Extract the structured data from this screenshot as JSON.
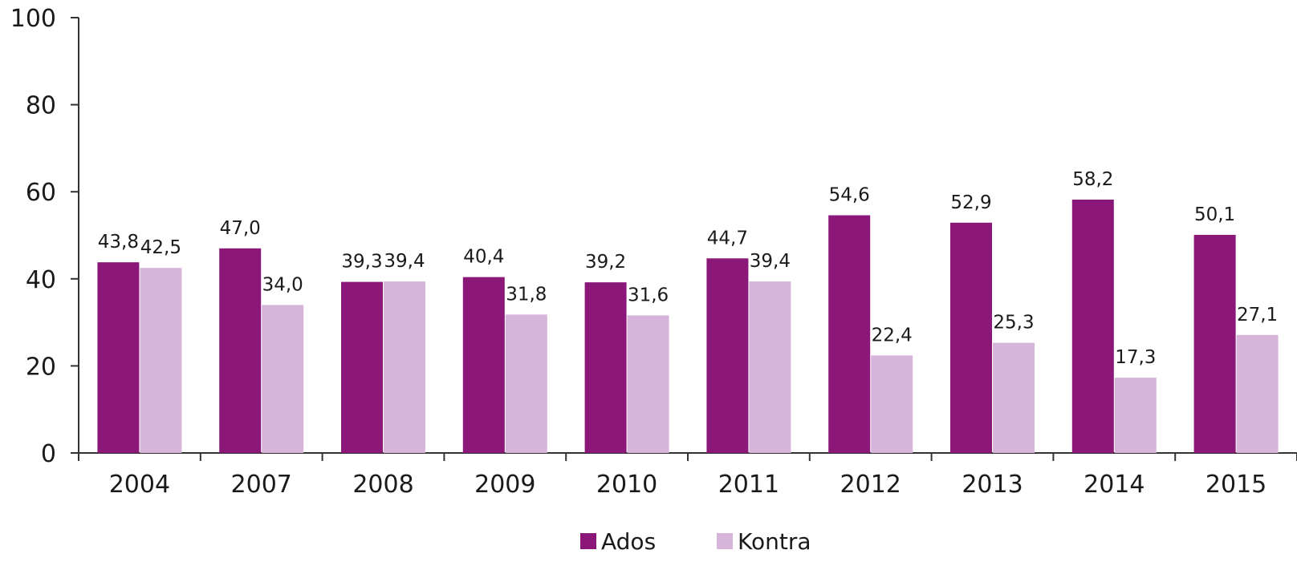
{
  "chart_data": {
    "type": "bar",
    "categories": [
      "2004",
      "2007",
      "2008",
      "2009",
      "2010",
      "2011",
      "2012",
      "2013",
      "2014",
      "2015"
    ],
    "series": [
      {
        "name": "Ados",
        "color": "#8B1878",
        "values": [
          43.8,
          47.0,
          39.3,
          40.4,
          39.2,
          44.7,
          54.6,
          52.9,
          58.2,
          50.1
        ],
        "labels": [
          "43,8",
          "47,0",
          "39,3",
          "40,4",
          "39,2",
          "44,7",
          "54,6",
          "52,9",
          "58,2",
          "50,1"
        ]
      },
      {
        "name": "Kontra",
        "color": "#D7B5DB",
        "values": [
          42.5,
          34.0,
          39.4,
          31.8,
          31.6,
          39.4,
          22.4,
          25.3,
          17.3,
          27.1
        ],
        "labels": [
          "42,5",
          "34,0",
          "39,4",
          "31,8",
          "31,6",
          "39,4",
          "22,4",
          "25,3",
          "17,3",
          "27,1"
        ]
      }
    ],
    "ylim": [
      0,
      100
    ],
    "yticks": [
      "0",
      "20",
      "40",
      "60",
      "80",
      "100"
    ],
    "title": "",
    "xlabel": "",
    "ylabel": "",
    "grid": false,
    "legend_position": "bottom-center"
  }
}
